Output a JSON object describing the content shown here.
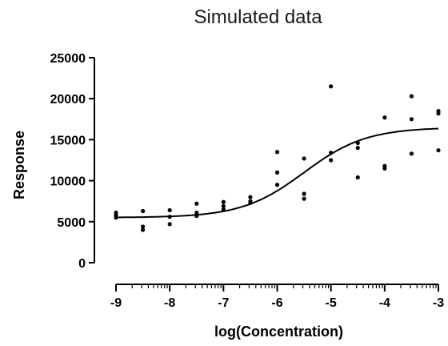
{
  "chart_data": {
    "type": "scatter",
    "title": "Simulated data",
    "xlabel": "log(Concentration)",
    "ylabel": "Response",
    "xlim": [
      -9,
      -3
    ],
    "ylim": [
      0,
      25000
    ],
    "x_ticks": [
      "-9",
      "-8",
      "-7",
      "-6",
      "-5",
      "-4",
      "-3"
    ],
    "y_ticks": [
      "0",
      "5000",
      "10000",
      "15000",
      "20000",
      "25000"
    ],
    "grid": false,
    "points": [
      {
        "x": -9,
        "y": 6100
      },
      {
        "x": -9,
        "y": 5800
      },
      {
        "x": -9,
        "y": 5500
      },
      {
        "x": -8.5,
        "y": 6300
      },
      {
        "x": -8.5,
        "y": 4400
      },
      {
        "x": -8.5,
        "y": 4000
      },
      {
        "x": -8,
        "y": 6400
      },
      {
        "x": -8,
        "y": 5600
      },
      {
        "x": -8,
        "y": 4700
      },
      {
        "x": -7.5,
        "y": 7200
      },
      {
        "x": -7.5,
        "y": 6100
      },
      {
        "x": -7.5,
        "y": 5700
      },
      {
        "x": -7,
        "y": 7400
      },
      {
        "x": -7,
        "y": 6900
      },
      {
        "x": -7,
        "y": 6500
      },
      {
        "x": -6.5,
        "y": 8000
      },
      {
        "x": -6.5,
        "y": 7500
      },
      {
        "x": -6.5,
        "y": 7300
      },
      {
        "x": -6,
        "y": 13500
      },
      {
        "x": -6,
        "y": 11000
      },
      {
        "x": -6,
        "y": 9500
      },
      {
        "x": -5.5,
        "y": 12700
      },
      {
        "x": -5.5,
        "y": 8400
      },
      {
        "x": -5.5,
        "y": 7800
      },
      {
        "x": -5,
        "y": 21500
      },
      {
        "x": -5,
        "y": 13400
      },
      {
        "x": -5,
        "y": 12500
      },
      {
        "x": -4.5,
        "y": 14600
      },
      {
        "x": -4.5,
        "y": 14000
      },
      {
        "x": -4.5,
        "y": 10400
      },
      {
        "x": -4,
        "y": 17700
      },
      {
        "x": -4,
        "y": 11800
      },
      {
        "x": -4,
        "y": 11500
      },
      {
        "x": -3.5,
        "y": 20300
      },
      {
        "x": -3.5,
        "y": 17500
      },
      {
        "x": -3.5,
        "y": 13300
      },
      {
        "x": -3,
        "y": 18500
      },
      {
        "x": -3,
        "y": 18200
      },
      {
        "x": -3,
        "y": 13700
      }
    ],
    "fit_curve": {
      "bottom": 5500,
      "top": 16500,
      "logEC50": -5.5,
      "hill_slope": 0.75
    }
  }
}
